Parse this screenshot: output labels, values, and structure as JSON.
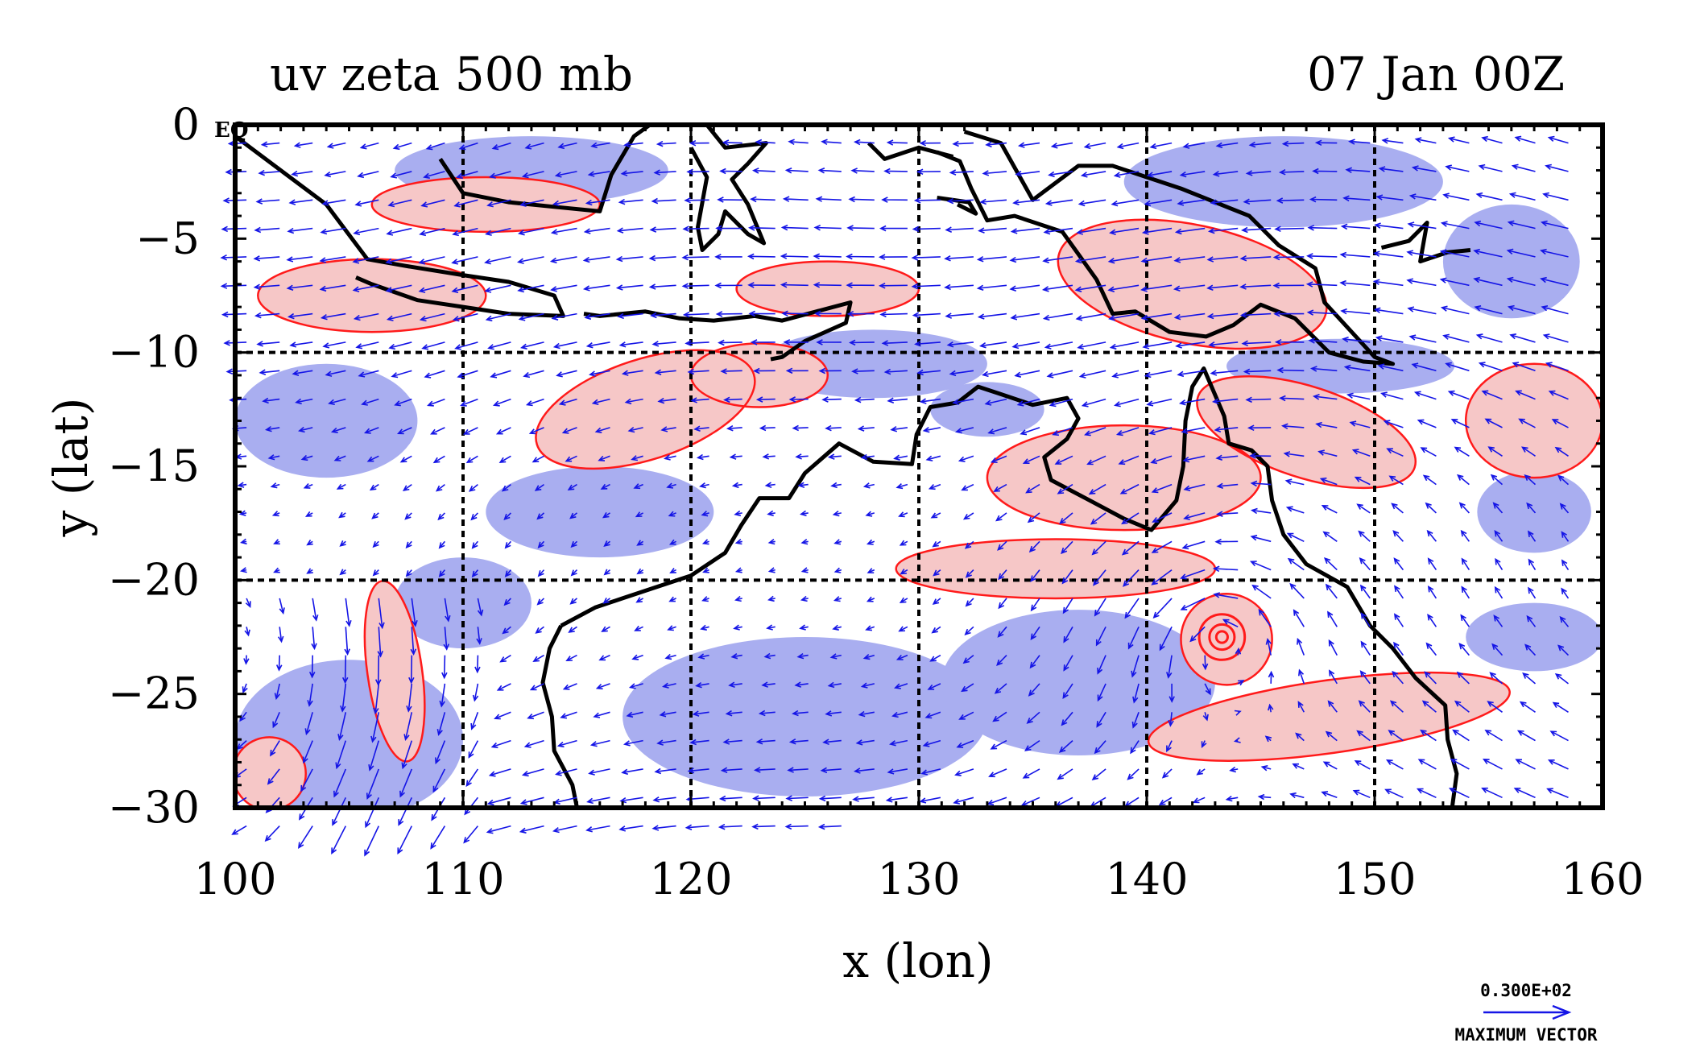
{
  "title_left": "uv zeta 500 mb",
  "title_right": "07 Jan 00Z",
  "equator_label": "EQ",
  "colors": {
    "negative_shade": "#a9aef0",
    "positive_shade": "#f6c7c7",
    "contour": "#ff1a1a",
    "vector": "#1515e6",
    "coast": "#000000",
    "grid": "#000000"
  },
  "reference_vector": {
    "value": "0.300E+02",
    "label": "MAXIMUM VECTOR"
  },
  "chart_data": {
    "type": "vector_field_map",
    "xlabel": "x (lon)",
    "ylabel": "y (lat)",
    "xlim": [
      100,
      160
    ],
    "ylim": [
      -30,
      0
    ],
    "xticks": [
      100,
      110,
      120,
      130,
      140,
      150,
      160
    ],
    "yticks": [
      0,
      -5,
      -10,
      -15,
      -20,
      -25,
      -30
    ],
    "ytick_labels": [
      "0",
      "−5",
      "−10",
      "−15",
      "−20",
      "−25",
      "−30"
    ],
    "grid_lon": [
      110,
      120,
      130,
      140,
      150
    ],
    "grid_lat": [
      -10,
      -20
    ],
    "cyclone_center": [
      143.3,
      -22.5
    ],
    "coastlines": [
      [
        [
          100,
          -0.5
        ],
        [
          102,
          -2
        ],
        [
          104,
          -3.5
        ],
        [
          105.8,
          -5.9
        ],
        [
          107.5,
          -6.2
        ],
        [
          110,
          -6.6
        ],
        [
          112,
          -6.9
        ],
        [
          114,
          -7.5
        ],
        [
          114.4,
          -8.4
        ],
        [
          112,
          -8.3
        ],
        [
          110,
          -8
        ],
        [
          108,
          -7.7
        ],
        [
          106,
          -7
        ],
        [
          105.3,
          -6.7
        ]
      ],
      [
        [
          115.3,
          -8.3
        ],
        [
          116,
          -8.4
        ],
        [
          118,
          -8.2
        ],
        [
          119.5,
          -8.5
        ],
        [
          121,
          -8.6
        ],
        [
          122.8,
          -8.4
        ],
        [
          124,
          -8.6
        ],
        [
          125.5,
          -8.2
        ],
        [
          127,
          -7.8
        ],
        [
          126.8,
          -8.7
        ],
        [
          125,
          -9.5
        ],
        [
          124,
          -10.2
        ],
        [
          123.5,
          -10.3
        ]
      ],
      [
        [
          109,
          -1.5
        ],
        [
          110,
          -3
        ],
        [
          112,
          -3.4
        ],
        [
          114,
          -3.6
        ],
        [
          116,
          -3.8
        ],
        [
          116.5,
          -2.2
        ],
        [
          117.5,
          -0.5
        ],
        [
          118.2,
          0
        ]
      ],
      [
        [
          120,
          -1
        ],
        [
          120.7,
          -2.3
        ],
        [
          120.3,
          -4.5
        ],
        [
          120.5,
          -5.5
        ],
        [
          121.2,
          -4.8
        ],
        [
          121.5,
          -3.8
        ],
        [
          122.5,
          -4.8
        ],
        [
          123.2,
          -5.2
        ],
        [
          122.5,
          -3.5
        ],
        [
          121.8,
          -2.4
        ],
        [
          122.5,
          -1.7
        ],
        [
          123.3,
          -0.8
        ],
        [
          121.5,
          -1
        ],
        [
          120.7,
          0
        ]
      ],
      [
        [
          127.8,
          -0.8
        ],
        [
          128.5,
          -1.5
        ],
        [
          130,
          -1
        ],
        [
          131.5,
          -1.4
        ]
      ],
      [
        [
          130.8,
          -3.2
        ],
        [
          132.2,
          -3.4
        ],
        [
          132.5,
          -3.9
        ],
        [
          131.7,
          -3.5
        ]
      ],
      [
        [
          132,
          -0.3
        ],
        [
          133.6,
          -0.8
        ],
        [
          135,
          -3.3
        ],
        [
          137,
          -1.8
        ],
        [
          138.5,
          -1.8
        ],
        [
          140,
          -2.3
        ],
        [
          141.5,
          -2.8
        ],
        [
          143,
          -3.4
        ],
        [
          144.5,
          -4
        ],
        [
          145.8,
          -5.3
        ],
        [
          147.4,
          -6.3
        ],
        [
          147.8,
          -7.8
        ],
        [
          148.9,
          -9
        ],
        [
          150,
          -10.2
        ],
        [
          150.8,
          -10.5
        ],
        [
          149.5,
          -10.4
        ],
        [
          148,
          -10
        ],
        [
          146.5,
          -8.5
        ],
        [
          145,
          -7.9
        ],
        [
          143.8,
          -8.8
        ],
        [
          142.6,
          -9.3
        ],
        [
          141,
          -9.1
        ],
        [
          139.5,
          -8.2
        ],
        [
          138.5,
          -8.3
        ],
        [
          137.8,
          -6.8
        ],
        [
          136.3,
          -4.7
        ],
        [
          134.2,
          -4
        ],
        [
          133,
          -4.2
        ],
        [
          132.3,
          -2.8
        ],
        [
          131.8,
          -1.6
        ],
        [
          130.8,
          -1.2
        ]
      ],
      [
        [
          150.3,
          -5.4
        ],
        [
          151.5,
          -5.1
        ],
        [
          152.3,
          -4.3
        ],
        [
          152,
          -6
        ],
        [
          153.2,
          -5.6
        ],
        [
          154.2,
          -5.5
        ]
      ],
      [
        [
          114.3,
          -22
        ],
        [
          113.8,
          -23
        ],
        [
          113.5,
          -24.5
        ],
        [
          113.9,
          -26
        ],
        [
          114,
          -27.5
        ],
        [
          114.8,
          -29
        ],
        [
          115,
          -30
        ]
      ],
      [
        [
          114.3,
          -22
        ],
        [
          115.8,
          -21.2
        ],
        [
          117,
          -20.8
        ],
        [
          118.5,
          -20.3
        ],
        [
          120,
          -19.8
        ],
        [
          121.5,
          -18.8
        ],
        [
          122.2,
          -17.6
        ],
        [
          123,
          -16.4
        ],
        [
          124.3,
          -16.4
        ],
        [
          125,
          -15.3
        ],
        [
          126.5,
          -14
        ],
        [
          128,
          -14.8
        ],
        [
          129.7,
          -14.9
        ],
        [
          129.9,
          -13.6
        ],
        [
          130.5,
          -12.4
        ],
        [
          131.7,
          -12.2
        ],
        [
          132.6,
          -11.5
        ],
        [
          133.5,
          -11.8
        ],
        [
          135,
          -12.3
        ],
        [
          136.5,
          -12
        ],
        [
          137,
          -12.9
        ],
        [
          136.5,
          -13.8
        ],
        [
          135.5,
          -14.6
        ],
        [
          135.8,
          -15.6
        ],
        [
          137.5,
          -16.5
        ],
        [
          139,
          -17.3
        ],
        [
          140.2,
          -17.8
        ],
        [
          141.3,
          -16.5
        ],
        [
          141.6,
          -15
        ],
        [
          141.7,
          -13
        ],
        [
          142,
          -11.5
        ],
        [
          142.5,
          -10.7
        ],
        [
          143.4,
          -12.8
        ],
        [
          143.6,
          -14
        ],
        [
          144.6,
          -14.3
        ],
        [
          145.3,
          -15
        ],
        [
          145.5,
          -16.5
        ],
        [
          146,
          -18
        ],
        [
          147,
          -19.3
        ],
        [
          148.8,
          -20.3
        ],
        [
          149.8,
          -22
        ],
        [
          150.8,
          -23
        ],
        [
          151.8,
          -24.3
        ],
        [
          153.1,
          -25.5
        ],
        [
          153.2,
          -27
        ],
        [
          153.6,
          -28.5
        ],
        [
          153.4,
          -30
        ]
      ]
    ],
    "positive_regions": [
      {
        "center": [
          106,
          -7.5
        ],
        "radius": [
          5,
          1.6
        ],
        "rotation": 0
      },
      {
        "center": [
          118,
          -12.5
        ],
        "radius": [
          5,
          2.2
        ],
        "rotation": -18
      },
      {
        "center": [
          123,
          -11
        ],
        "radius": [
          3,
          1.4
        ],
        "rotation": 0
      },
      {
        "center": [
          139,
          -15.5
        ],
        "radius": [
          6,
          2.3
        ],
        "rotation": 0
      },
      {
        "center": [
          147,
          -13.5
        ],
        "radius": [
          5,
          2
        ],
        "rotation": 18
      },
      {
        "center": [
          157,
          -13
        ],
        "radius": [
          3,
          2.5
        ],
        "rotation": 0
      },
      {
        "center": [
          136,
          -19.5
        ],
        "radius": [
          7,
          1.3
        ],
        "rotation": 0
      },
      {
        "center": [
          143.5,
          -22.6
        ],
        "radius": [
          2,
          2
        ],
        "rotation": 0
      },
      {
        "center": [
          148,
          -26
        ],
        "radius": [
          8,
          1.6
        ],
        "rotation": -8
      },
      {
        "center": [
          107,
          -24
        ],
        "radius": [
          1.2,
          4
        ],
        "rotation": -8
      },
      {
        "center": [
          101.5,
          -28.5
        ],
        "radius": [
          1.6,
          1.6
        ],
        "rotation": 0
      },
      {
        "center": [
          142,
          -7
        ],
        "radius": [
          6,
          2.6
        ],
        "rotation": 12
      },
      {
        "center": [
          111,
          -3.5
        ],
        "radius": [
          5,
          1.2
        ],
        "rotation": 0
      },
      {
        "center": [
          126,
          -7.2
        ],
        "radius": [
          4,
          1.2
        ],
        "rotation": 0
      }
    ],
    "negative_regions": [
      {
        "center": [
          125,
          -26
        ],
        "radius": [
          8,
          3.5
        ],
        "rotation": 0
      },
      {
        "center": [
          137,
          -24.5
        ],
        "radius": [
          6,
          3.2
        ],
        "rotation": 0
      },
      {
        "center": [
          105,
          -27
        ],
        "radius": [
          5,
          3.5
        ],
        "rotation": 0
      },
      {
        "center": [
          104,
          -13
        ],
        "radius": [
          4,
          2.5
        ],
        "rotation": 0
      },
      {
        "center": [
          116,
          -17
        ],
        "radius": [
          5,
          2
        ],
        "rotation": 0
      },
      {
        "center": [
          157,
          -22.5
        ],
        "radius": [
          3,
          1.5
        ],
        "rotation": 0
      },
      {
        "center": [
          113,
          -2
        ],
        "radius": [
          6,
          1.5
        ],
        "rotation": 0
      },
      {
        "center": [
          146,
          -2.5
        ],
        "radius": [
          7,
          2
        ],
        "rotation": 0
      },
      {
        "center": [
          156,
          -6
        ],
        "radius": [
          3,
          2.5
        ],
        "rotation": 0
      },
      {
        "center": [
          128,
          -10.5
        ],
        "radius": [
          5,
          1.5
        ],
        "rotation": 0
      },
      {
        "center": [
          148.5,
          -10.6
        ],
        "radius": [
          5,
          1.2
        ],
        "rotation": 0
      },
      {
        "center": [
          133,
          -12.5
        ],
        "radius": [
          2.5,
          1.2
        ],
        "rotation": 0
      },
      {
        "center": [
          157,
          -17
        ],
        "radius": [
          2.5,
          1.8
        ],
        "rotation": 0
      },
      {
        "center": [
          110,
          -21
        ],
        "radius": [
          3,
          2
        ],
        "rotation": 0
      }
    ]
  }
}
